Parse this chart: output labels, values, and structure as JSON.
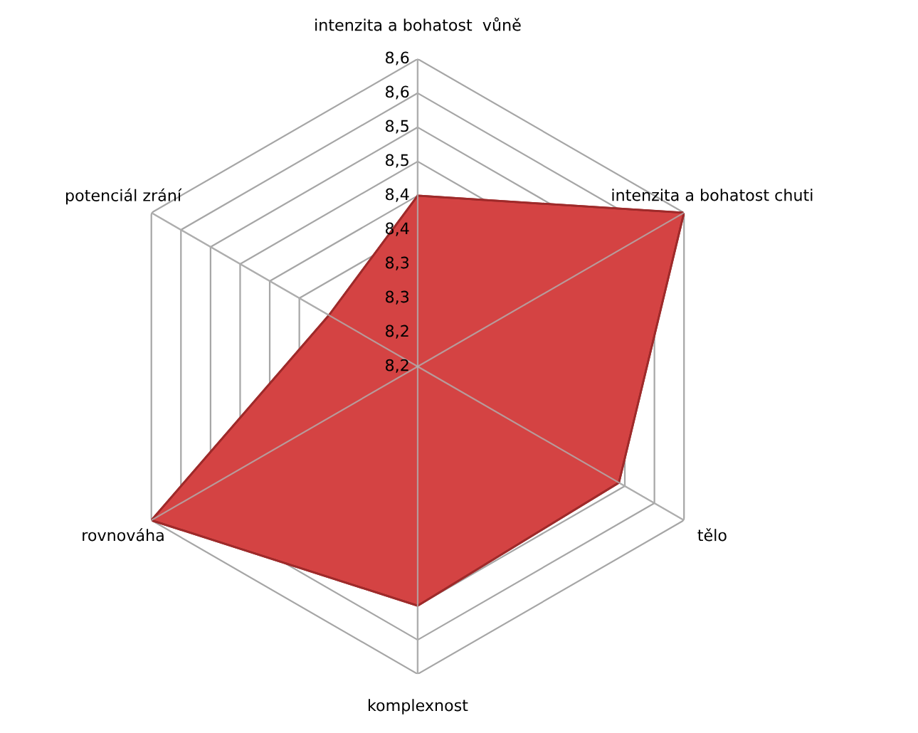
{
  "chart_data": {
    "type": "radar",
    "categories": [
      "intenzita a bohatost  vůně",
      "intenzita a bohatost chuti",
      "tělo",
      "komplexnost",
      "rovnováha",
      "potenciál zrání"
    ],
    "series": [
      {
        "color": "#d44343",
        "values": [
          8.4,
          8.6,
          8.49,
          8.5,
          8.6,
          8.3
        ]
      }
    ],
    "ylim": [
      8.15,
      8.6
    ],
    "yticks": [
      {
        "value": 8.15,
        "label": "8,2"
      },
      {
        "value": 8.2,
        "label": "8,2"
      },
      {
        "value": 8.25,
        "label": "8,3"
      },
      {
        "value": 8.3,
        "label": "8,3"
      },
      {
        "value": 8.35,
        "label": "8,4"
      },
      {
        "value": 8.4,
        "label": "8,4"
      },
      {
        "value": 8.45,
        "label": "8,5"
      },
      {
        "value": 8.5,
        "label": "8,5"
      },
      {
        "value": 8.55,
        "label": "8,6"
      },
      {
        "value": 8.6,
        "label": "8,6"
      }
    ],
    "grid": true
  }
}
